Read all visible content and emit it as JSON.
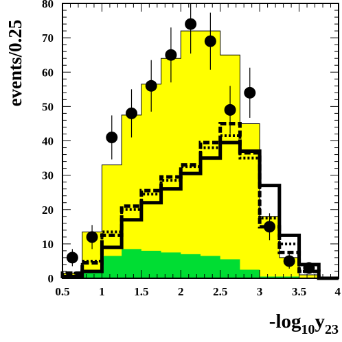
{
  "chart_data": {
    "type": "histogram",
    "title": "",
    "xlabel": {
      "main": "-log",
      "sub1": "10",
      "mid": "y",
      "sub2": "23"
    },
    "ylabel": "events/0.25",
    "xlim": [
      0.5,
      4.0
    ],
    "ylim": [
      0,
      80
    ],
    "bin_edges": [
      0.5,
      0.75,
      1.0,
      1.25,
      1.5,
      1.75,
      2.0,
      2.25,
      2.5,
      2.75,
      3.0,
      3.25,
      3.5,
      3.75,
      4.0
    ],
    "x_ticks": [
      {
        "value": 0.5,
        "label": "0.5"
      },
      {
        "value": 1.0,
        "label": "1"
      },
      {
        "value": 1.5,
        "label": "1.5"
      },
      {
        "value": 2.0,
        "label": "2"
      },
      {
        "value": 2.5,
        "label": "2.5"
      },
      {
        "value": 3.0,
        "label": "3"
      },
      {
        "value": 3.5,
        "label": "3.5"
      },
      {
        "value": 4.0,
        "label": "4"
      }
    ],
    "y_ticks": [
      {
        "value": 0,
        "label": "0"
      },
      {
        "value": 10,
        "label": "10"
      },
      {
        "value": 20,
        "label": "20"
      },
      {
        "value": 30,
        "label": "30"
      },
      {
        "value": 40,
        "label": "40"
      },
      {
        "value": 50,
        "label": "50"
      },
      {
        "value": 60,
        "label": "60"
      },
      {
        "value": 70,
        "label": "70"
      },
      {
        "value": 80,
        "label": "80"
      }
    ],
    "series": [
      {
        "style": "filled-yellow",
        "color": "#ffff00",
        "values": [
          1.5,
          13.5,
          33,
          47.5,
          56.5,
          64,
          72,
          72,
          65,
          45,
          18,
          6,
          1,
          0
        ]
      },
      {
        "style": "filled-green",
        "color": "#00dd33",
        "values": [
          0.5,
          1.5,
          6.5,
          8.5,
          8,
          7.5,
          7,
          6.5,
          5.5,
          2.5,
          0.5,
          0.5,
          0.2,
          0
        ]
      },
      {
        "style": "dashed-thick",
        "color": "#000000",
        "values": [
          1.5,
          4.5,
          12.5,
          21,
          25.5,
          29.5,
          33,
          39.5,
          45,
          36.5,
          15,
          7.5,
          2,
          0
        ]
      },
      {
        "style": "dotted-thick",
        "color": "#000000",
        "values": [
          1.5,
          5,
          13.5,
          20,
          24.5,
          28.5,
          32.5,
          38,
          41.5,
          35,
          17.5,
          10,
          2,
          0
        ]
      },
      {
        "style": "solid-thick",
        "color": "#000000",
        "values": [
          0.5,
          2,
          9,
          17,
          22,
          26,
          30.5,
          35,
          39.5,
          37,
          27,
          12.5,
          4,
          0
        ]
      }
    ],
    "data_points": [
      {
        "x": 0.625,
        "y": 6,
        "err": 2.5
      },
      {
        "x": 0.875,
        "y": 12,
        "err": 3.5
      },
      {
        "x": 1.125,
        "y": 41,
        "err": 6.4
      },
      {
        "x": 1.375,
        "y": 48,
        "err": 7
      },
      {
        "x": 1.625,
        "y": 56,
        "err": 7.5
      },
      {
        "x": 1.875,
        "y": 65,
        "err": 8
      },
      {
        "x": 2.125,
        "y": 74,
        "err": 8.6
      },
      {
        "x": 2.375,
        "y": 69,
        "err": 8.3
      },
      {
        "x": 2.625,
        "y": 49,
        "err": 7
      },
      {
        "x": 2.875,
        "y": 54,
        "err": 7.3
      },
      {
        "x": 3.125,
        "y": 15,
        "err": 3.9
      },
      {
        "x": 3.375,
        "y": 5,
        "err": 2.2
      },
      {
        "x": 3.625,
        "y": 3,
        "err": 1.7
      }
    ]
  }
}
